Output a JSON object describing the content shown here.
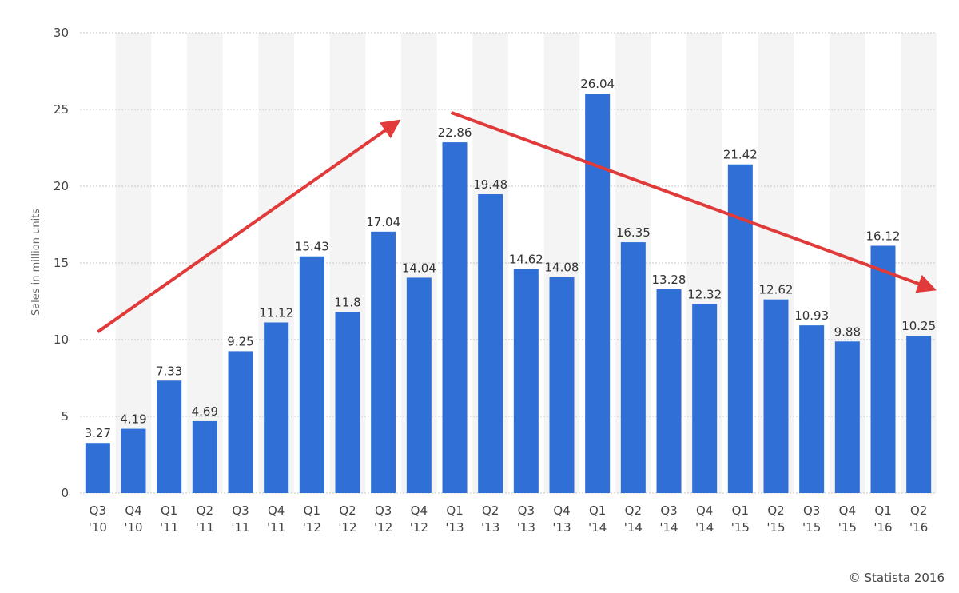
{
  "colors": {
    "bar": "#2f6fd6",
    "arrow": "#e03a3a",
    "band": "#f4f4f4",
    "grid": "#c9c9c9"
  },
  "credit": "© Statista 2016",
  "chart_data": {
    "type": "bar",
    "ylabel": "Sales in million units",
    "ylim": [
      0,
      30
    ],
    "yticks": [
      0,
      5,
      10,
      15,
      20,
      25,
      30
    ],
    "grid": true,
    "categories": [
      [
        "Q3",
        "'10"
      ],
      [
        "Q4",
        "'10"
      ],
      [
        "Q1",
        "'11"
      ],
      [
        "Q2",
        "'11"
      ],
      [
        "Q3",
        "'11"
      ],
      [
        "Q4",
        "'11"
      ],
      [
        "Q1",
        "'12"
      ],
      [
        "Q2",
        "'12"
      ],
      [
        "Q3",
        "'12"
      ],
      [
        "Q4",
        "'12"
      ],
      [
        "Q1",
        "'13"
      ],
      [
        "Q2",
        "'13"
      ],
      [
        "Q3",
        "'13"
      ],
      [
        "Q4",
        "'13"
      ],
      [
        "Q1",
        "'14"
      ],
      [
        "Q2",
        "'14"
      ],
      [
        "Q3",
        "'14"
      ],
      [
        "Q4",
        "'14"
      ],
      [
        "Q1",
        "'15"
      ],
      [
        "Q2",
        "'15"
      ],
      [
        "Q3",
        "'15"
      ],
      [
        "Q4",
        "'15"
      ],
      [
        "Q1",
        "'16"
      ],
      [
        "Q2",
        "'16"
      ]
    ],
    "values": [
      3.27,
      4.19,
      7.33,
      4.69,
      9.25,
      11.12,
      15.43,
      11.8,
      17.04,
      14.04,
      22.86,
      19.48,
      14.62,
      14.08,
      26.04,
      16.35,
      13.28,
      12.32,
      21.42,
      12.62,
      10.93,
      9.88,
      16.12,
      10.25
    ],
    "annotations": [
      {
        "type": "arrow",
        "from": {
          "category": 0,
          "y": 10.5
        },
        "to": {
          "category": 8.4,
          "y": 24.2
        }
      },
      {
        "type": "arrow",
        "from": {
          "category": 9.9,
          "y": 24.8
        },
        "to": {
          "category": 23.4,
          "y": 13.3
        }
      }
    ]
  }
}
